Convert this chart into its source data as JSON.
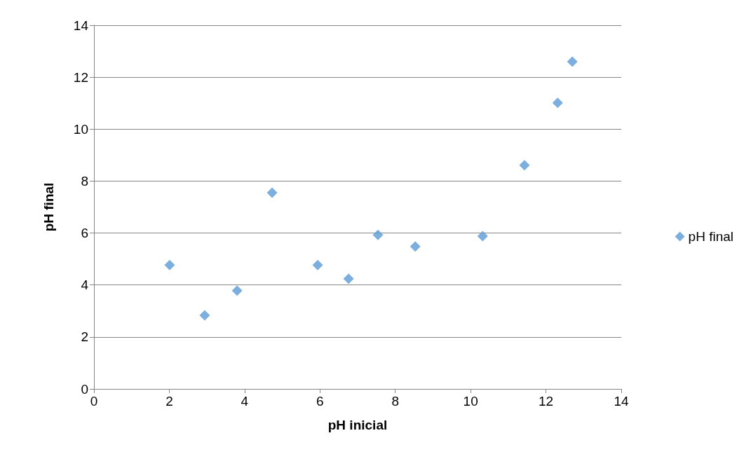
{
  "chart_data": {
    "type": "scatter",
    "xlabel": "pH inicial",
    "ylabel": "pH final",
    "x": [
      2.01,
      2.94,
      3.8,
      4.73,
      5.94,
      6.76,
      7.54,
      8.53,
      10.32,
      11.43,
      12.31,
      12.7
    ],
    "series": [
      {
        "name": "pH final",
        "color": "#5b9bd5",
        "values": [
          4.77,
          2.83,
          3.78,
          7.55,
          4.77,
          4.24,
          5.93,
          5.48,
          5.88,
          8.61,
          11.01,
          12.6
        ]
      }
    ],
    "xlim": [
      0,
      14
    ],
    "xticks": [
      0,
      2,
      4,
      6,
      8,
      10,
      12,
      14
    ],
    "ylim": [
      0,
      14
    ],
    "yticks": [
      0,
      2,
      4,
      6,
      8,
      10,
      12,
      14
    ],
    "grid": "y",
    "legend": "right",
    "marker": "diamond"
  }
}
